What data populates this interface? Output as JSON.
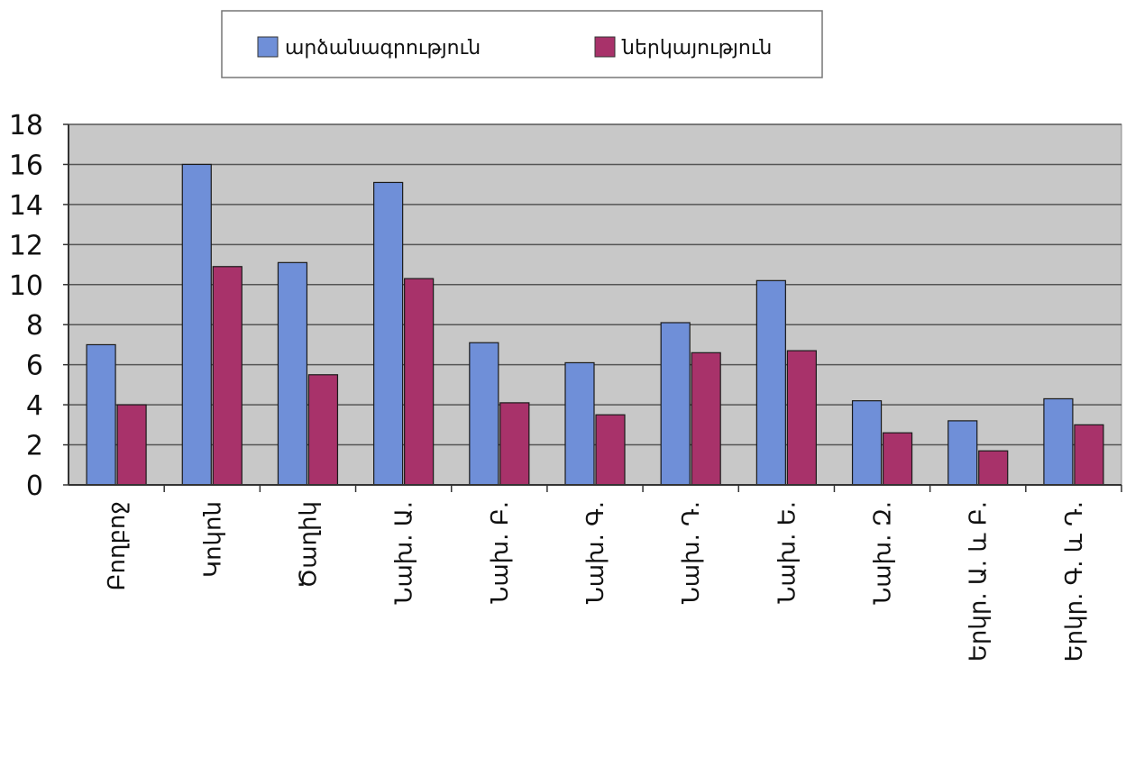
{
  "chart_data": {
    "type": "bar",
    "categories": [
      "Բողբոջ",
      "Կոկոն",
      "Ծաղիկ",
      "Նախ. Ա.",
      "Նախ. Բ.",
      "Նախ. Գ.",
      "Նախ. Դ.",
      "Նախ. Ե.",
      "Նախ. Զ.",
      "Երկր. Ա. և Բ.",
      "Երկր. Գ. և Դ."
    ],
    "series": [
      {
        "name": "արձանագրություն",
        "color": "#6f8fd8",
        "values": [
          7,
          16,
          11.1,
          15.1,
          7.1,
          6.1,
          8.1,
          10.2,
          4.2,
          3.2,
          4.3
        ]
      },
      {
        "name": "ներկայություն",
        "color": "#a8326a",
        "values": [
          4,
          10.9,
          5.5,
          10.3,
          4.1,
          3.5,
          6.6,
          6.7,
          2.6,
          1.7,
          3
        ]
      }
    ],
    "ylim": [
      0,
      18
    ],
    "yticks": [
      "0",
      "2",
      "4",
      "6",
      "8",
      "10",
      "12",
      "14",
      "16",
      "18"
    ],
    "grid": true,
    "legend": "top",
    "plot_bg": "#c8c8c8"
  }
}
